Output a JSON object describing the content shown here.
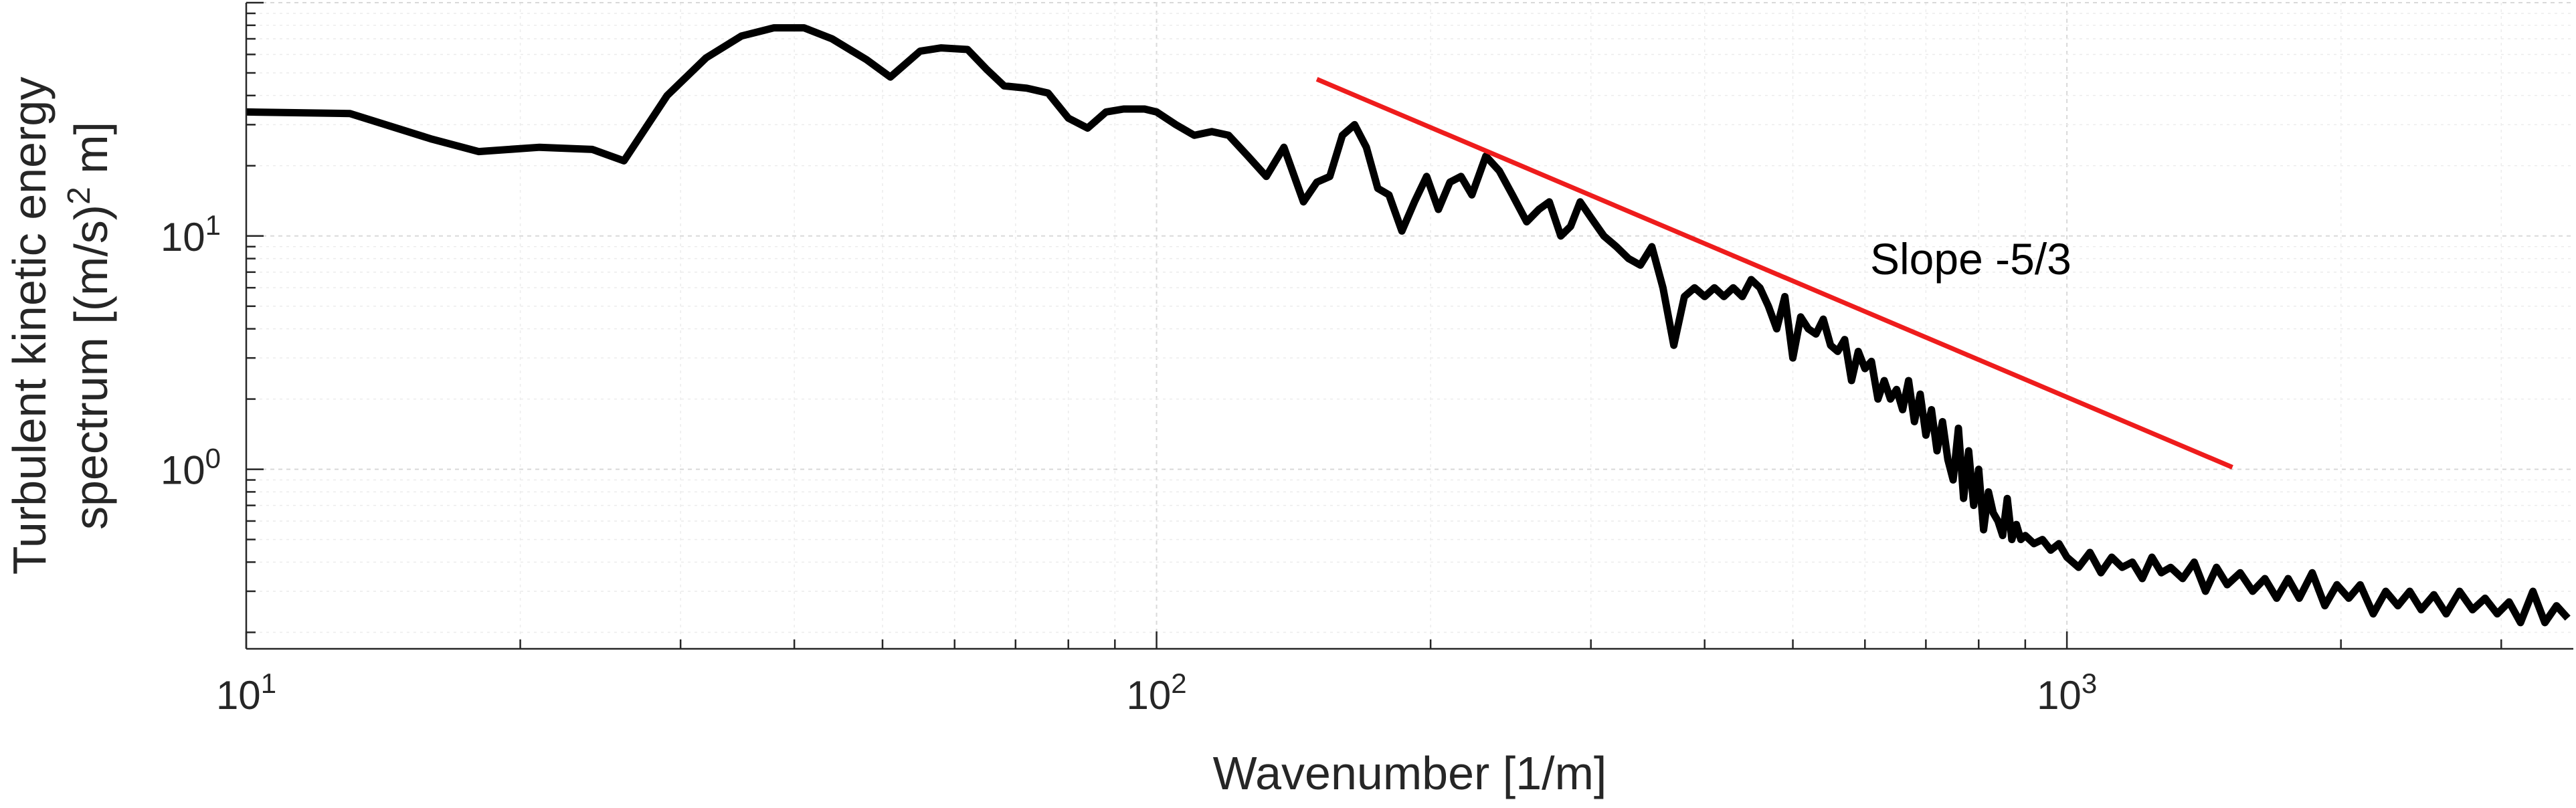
{
  "chart_data": {
    "type": "line",
    "title": "",
    "xlabel": "Wavenumber [1/m]",
    "ylabel_lines": [
      "Turbulent kinetic energy",
      "spectrum [(m/s)",
      "2",
      " m]"
    ],
    "xscale": "log",
    "yscale": "log",
    "xlim": [
      10,
      3600
    ],
    "ylim": [
      0.17,
      100
    ],
    "xticks": [
      {
        "base": "10",
        "exp": "1",
        "value": 10
      },
      {
        "base": "10",
        "exp": "2",
        "value": 100
      },
      {
        "base": "10",
        "exp": "3",
        "value": 1000
      }
    ],
    "yticks": [
      {
        "base": "10",
        "exp": "0",
        "value": 1
      },
      {
        "base": "10",
        "exp": "1",
        "value": 10
      }
    ],
    "grid": true,
    "series": [
      {
        "color": "#000000",
        "x": [
          10,
          13,
          16,
          18,
          21,
          24,
          26,
          29,
          32,
          35,
          38,
          41,
          44,
          48,
          51,
          55,
          58,
          62,
          65,
          68,
          72,
          76,
          80,
          84,
          88,
          92,
          97,
          100,
          105,
          110,
          115,
          120,
          126,
          132,
          138,
          145,
          150,
          155,
          160,
          165,
          170,
          175,
          180,
          186,
          192,
          198,
          204,
          210,
          216,
          222,
          230,
          238,
          246,
          255,
          263,
          270,
          278,
          285,
          292,
          300,
          310,
          320,
          330,
          340,
          350,
          360,
          370,
          380,
          390,
          400,
          410,
          420,
          430,
          440,
          450,
          460,
          470,
          480,
          490,
          500,
          510,
          520,
          530,
          540,
          550,
          560,
          570,
          580,
          590,
          600,
          610,
          620,
          630,
          640,
          650,
          660,
          670,
          680,
          690,
          700,
          710,
          720,
          730,
          740,
          750,
          760,
          770,
          780,
          790,
          800,
          810,
          820,
          830,
          840,
          850,
          860,
          870,
          880,
          890,
          900,
          920,
          940,
          960,
          980,
          1000,
          1030,
          1060,
          1090,
          1120,
          1150,
          1180,
          1210,
          1240,
          1270,
          1300,
          1340,
          1380,
          1420,
          1460,
          1500,
          1550,
          1600,
          1650,
          1700,
          1750,
          1800,
          1860,
          1920,
          1980,
          2040,
          2100,
          2170,
          2240,
          2310,
          2380,
          2450,
          2530,
          2610,
          2700,
          2790,
          2880,
          2970,
          3060,
          3150,
          3250,
          3350,
          3450,
          3550
        ],
        "y": [
          34,
          33.5,
          26,
          23,
          24,
          23.5,
          21,
          40,
          58,
          72,
          78,
          78,
          70,
          57,
          48,
          62,
          64,
          63,
          52,
          44,
          43,
          41,
          32,
          29,
          34,
          35,
          35,
          34,
          30,
          27,
          28,
          27,
          22,
          18,
          24,
          14,
          17,
          18,
          27,
          30,
          24,
          16,
          15,
          10.5,
          14,
          18,
          13,
          17,
          18,
          15,
          22,
          19,
          15,
          11.5,
          13,
          14,
          10,
          11,
          14,
          12,
          10,
          9,
          8,
          7.5,
          9,
          6,
          3.4,
          5.5,
          6,
          5.5,
          6,
          5.5,
          6,
          5.5,
          6.5,
          6,
          5,
          4,
          5.5,
          3,
          4.5,
          4,
          3.8,
          4.4,
          3.4,
          3.2,
          3.6,
          2.4,
          3.2,
          2.7,
          2.9,
          2,
          2.4,
          2,
          2.2,
          1.8,
          2.4,
          1.6,
          2.1,
          1.4,
          1.8,
          1.2,
          1.6,
          1.1,
          0.9,
          1.5,
          0.75,
          1.2,
          0.7,
          1,
          0.55,
          0.8,
          0.65,
          0.6,
          0.52,
          0.75,
          0.5,
          0.58,
          0.5,
          0.52,
          0.48,
          0.5,
          0.45,
          0.48,
          0.42,
          0.38,
          0.44,
          0.36,
          0.42,
          0.38,
          0.4,
          0.34,
          0.42,
          0.36,
          0.38,
          0.34,
          0.4,
          0.3,
          0.38,
          0.32,
          0.36,
          0.3,
          0.34,
          0.28,
          0.34,
          0.28,
          0.36,
          0.26,
          0.32,
          0.28,
          0.32,
          0.24,
          0.3,
          0.26,
          0.3,
          0.25,
          0.29,
          0.24,
          0.3,
          0.25,
          0.28,
          0.24,
          0.27,
          0.22,
          0.3,
          0.22,
          0.26,
          0.23
        ]
      },
      {
        "color": "#ee1c1c",
        "x": [
          150,
          1520
        ],
        "y": [
          47,
          1.02
        ]
      }
    ],
    "annotations": [
      {
        "text": "Slope -5/3",
        "x": 550,
        "y": 7.5
      }
    ]
  }
}
